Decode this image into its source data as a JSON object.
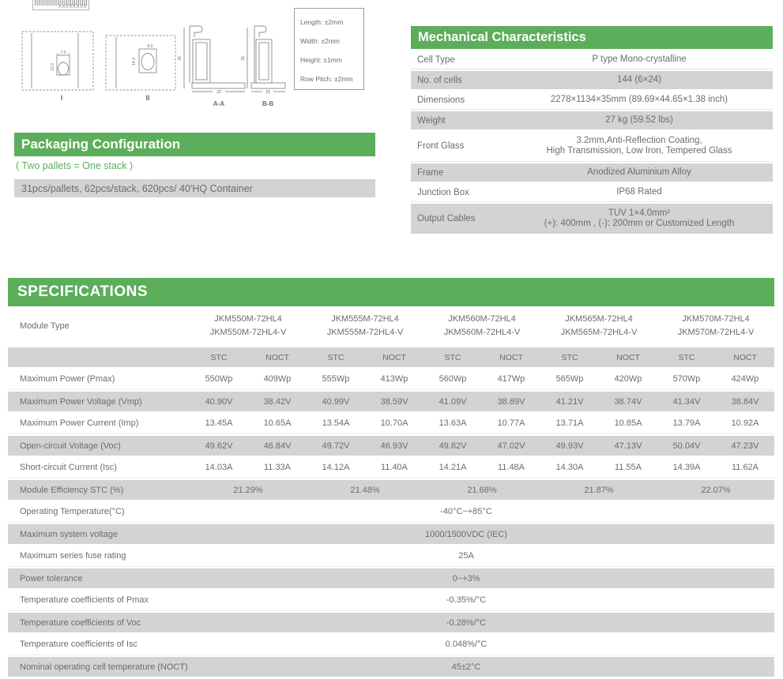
{
  "colors": {
    "green": "#5cae5b",
    "row_gray": "#d2d3d4",
    "text_gray": "#6b6c6e"
  },
  "drawings": {
    "barcode_text": "XXXXXXXX",
    "view1": {
      "label": "I",
      "dim_width": "7.0",
      "dim_height": "10.0"
    },
    "view2": {
      "label": "II",
      "dim_width": "9.0",
      "dim_height": "14.0"
    },
    "section_aa": {
      "label": "A-A",
      "dim_width": "33",
      "dim_height": "35"
    },
    "section_bb": {
      "label": "B-B",
      "dim_width": "18",
      "dim_height": "35"
    },
    "tolerances": [
      "Length: ±2mm",
      "Width: ±2mm",
      "Height: ±1mm",
      "Row Pitch: ±2mm"
    ]
  },
  "packaging": {
    "title": "Packaging Configuration",
    "note": "( Two pallets = One stack )",
    "detail": "31pcs/pallets, 62pcs/stack, 620pcs/ 40'HQ Container"
  },
  "mechanical": {
    "title": "Mechanical Characteristics",
    "rows": [
      {
        "label": "Cell  Type",
        "value": "P type Mono-crystalline"
      },
      {
        "label": "No. of cells",
        "value": "144 (6×24)"
      },
      {
        "label": "Dimensions",
        "value": "2278×1134×35mm (89.69×44.65×1.38 inch)"
      },
      {
        "label": "Weight",
        "value": "27 kg (59.52 lbs)"
      },
      {
        "label": "Front Glass",
        "value": "3.2mm,Anti-Reflection Coating,",
        "value2": "High Transmission, Low Iron, Tempered Glass"
      },
      {
        "label": "Frame",
        "value": "Anodized Aluminium Alloy"
      },
      {
        "label": "Junction Box",
        "value": "IP68 Rated"
      },
      {
        "label": "Output Cables",
        "value": "TUV 1×4.0mm²",
        "value2": "(+): 400mm , (-): 200mm or Customized Length"
      }
    ]
  },
  "specifications": {
    "title": "SPECIFICATIONS",
    "module_type_label": "Module Type",
    "stc_label": "STC",
    "noct_label": "NOCT",
    "modules": [
      {
        "name1": "JKM550M-72HL4",
        "name2": "JKM550M-72HL4-V"
      },
      {
        "name1": "JKM555M-72HL4",
        "name2": "JKM555M-72HL4-V"
      },
      {
        "name1": "JKM560M-72HL4",
        "name2": "JKM560M-72HL4-V"
      },
      {
        "name1": "JKM565M-72HL4",
        "name2": "JKM565M-72HL4-V"
      },
      {
        "name1": "JKM570M-72HL4",
        "name2": "JKM570M-72HL4-V"
      }
    ],
    "electrical_rows": [
      {
        "label": "Maximum Power (Pmax)",
        "values": [
          "550Wp",
          "409Wp",
          "555Wp",
          "413Wp",
          "560Wp",
          "417Wp",
          "565Wp",
          "420Wp",
          "570Wp",
          "424Wp"
        ]
      },
      {
        "label": "Maximum Power Voltage (Vmp)",
        "values": [
          "40.90V",
          "38.42V",
          "40.99V",
          "38.59V",
          "41.09V",
          "38.69V",
          "41.21V",
          "38.74V",
          "41.34V",
          "38.84V"
        ]
      },
      {
        "label": "Maximum Power Current (Imp)",
        "values": [
          "13.45A",
          "10.65A",
          "13.54A",
          "10.70A",
          "13.63A",
          "10.77A",
          "13.71A",
          "10.85A",
          "13.79A",
          "10.92A"
        ]
      },
      {
        "label": "Open-circuit Voltage (Voc)",
        "values": [
          "49.62V",
          "46.84V",
          "49.72V",
          "46.93V",
          "49.82V",
          "47.02V",
          "49.93V",
          "47.13V",
          "50.04V",
          "47.23V"
        ]
      },
      {
        "label": "Short-circuit Current (Isc)",
        "values": [
          "14.03A",
          "11.33A",
          "14.12A",
          "11.40A",
          "14.21A",
          "11.48A",
          "14.30A",
          "11.55A",
          "14.39A",
          "11.62A"
        ]
      }
    ],
    "efficiency_row": {
      "label": "Module Efficiency STC (%)",
      "values": [
        "21.29%",
        "21.48%",
        "21.68%",
        "21.87%",
        "22.07%"
      ]
    },
    "common_rows": [
      {
        "label": "Operating Temperature(°C)",
        "value": "-40°C~+85°C"
      },
      {
        "label": "Maximum system voltage",
        "value": "1000/1500VDC (IEC)"
      },
      {
        "label": "Maximum series fuse rating",
        "value": "25A"
      },
      {
        "label": "Power tolerance",
        "value": "0~+3%"
      },
      {
        "label": "Temperature coefficients of Pmax",
        "value": "-0.35%/°C"
      },
      {
        "label": "Temperature coefficients of Voc",
        "value": "-0.28%/°C"
      },
      {
        "label": "Temperature coefficients of Isc",
        "value": "0.048%/°C"
      },
      {
        "label": "Nominal operating cell temperature  (NOCT)",
        "value": "45±2°C"
      }
    ]
  }
}
